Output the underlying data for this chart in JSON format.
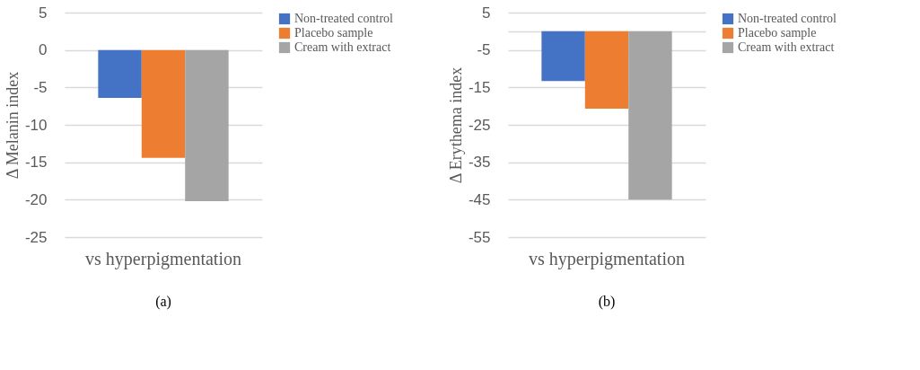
{
  "chart_data": [
    {
      "type": "bar",
      "categories": [
        "vs hyperpigmentation"
      ],
      "ylabel": "Δ Melanin index",
      "ylim": [
        -25,
        5
      ],
      "yticks": [
        5,
        0,
        -5,
        -10,
        -15,
        -20,
        -25
      ],
      "grid": "y",
      "legend": "right",
      "annotations": [
        "(a)"
      ],
      "series": [
        {
          "name": "Non-treated control",
          "color": "#4472c4",
          "values": [
            -6.4
          ]
        },
        {
          "name": "Placebo sample",
          "color": "#ed7d31",
          "values": [
            -14.4
          ]
        },
        {
          "name": "Cream with extract",
          "color": "#a5a5a5",
          "values": [
            -20.2
          ]
        }
      ]
    },
    {
      "type": "bar",
      "categories": [
        "vs hyperpigmentation"
      ],
      "ylabel": "Δ Erythema index",
      "ylim": [
        -55,
        5
      ],
      "yticks": [
        5,
        {
          "value": 0,
          "label": null
        },
        -5,
        -15,
        -25,
        -35,
        -45,
        -55
      ],
      "grid": "y",
      "legend": "right",
      "annotations": [
        "(b)"
      ],
      "series": [
        {
          "name": "Non-treated control",
          "color": "#4472c4",
          "values": [
            -13.3
          ]
        },
        {
          "name": "Placebo sample",
          "color": "#ed7d31",
          "values": [
            -20.7
          ]
        },
        {
          "name": "Cream with extract",
          "color": "#a5a5a5",
          "values": [
            -45.0
          ]
        }
      ]
    }
  ]
}
